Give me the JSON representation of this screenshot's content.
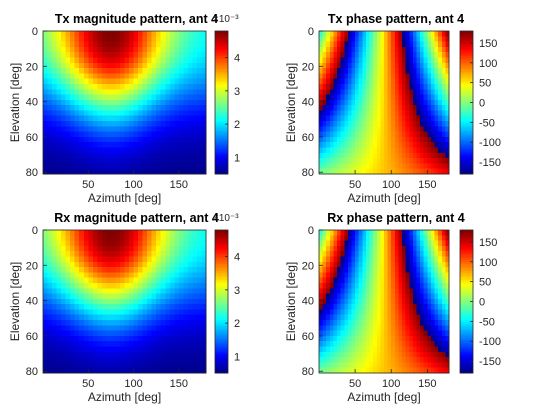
{
  "chart_data": [
    {
      "type": "heatmap",
      "kind": "magnitude",
      "title": "Tx magnitude pattern, ant 4",
      "xlabel": "Azimuth [deg]",
      "ylabel": "Elevation [deg]",
      "xlim": [
        0,
        180
      ],
      "ylim": [
        0,
        81
      ],
      "y_reversed": true,
      "x_ticks": [
        50,
        100,
        150
      ],
      "y_ticks": [
        0,
        20,
        40,
        60,
        80
      ],
      "grid": false,
      "colormap": "jet",
      "colorbar": {
        "ticks": [
          1,
          2,
          3,
          4
        ],
        "clim": [
          0.5,
          4.8
        ],
        "exponent_label": "×10⁻³"
      },
      "pattern_model": {
        "peak_azimuth": 75,
        "peak_value": 4.8,
        "floor_value": 0.5
      }
    },
    {
      "type": "heatmap",
      "kind": "phase",
      "title": "Tx phase pattern, ant 4",
      "xlabel": "Azimuth [deg]",
      "ylabel": "Elevation [deg]",
      "xlim": [
        0,
        180
      ],
      "ylim": [
        0,
        81
      ],
      "y_reversed": true,
      "x_ticks": [
        50,
        100,
        150
      ],
      "y_ticks": [
        0,
        20,
        40,
        60,
        80
      ],
      "grid": false,
      "colormap": "jet",
      "colorbar": {
        "ticks": [
          150,
          100,
          50,
          0,
          -50,
          -100,
          -150
        ],
        "clim": [
          -180,
          180
        ]
      },
      "pattern_model": {
        "center_azimuth": 80,
        "center_phase": 10,
        "phase_gradient_per_deg": 4.5
      }
    },
    {
      "type": "heatmap",
      "kind": "magnitude",
      "title": "Rx magnitude pattern, ant 4",
      "xlabel": "Azimuth [deg]",
      "ylabel": "Elevation [deg]",
      "xlim": [
        0,
        180
      ],
      "ylim": [
        0,
        81
      ],
      "y_reversed": true,
      "x_ticks": [
        50,
        100,
        150
      ],
      "y_ticks": [
        0,
        20,
        40,
        60,
        80
      ],
      "grid": false,
      "colormap": "jet",
      "colorbar": {
        "ticks": [
          1,
          2,
          3,
          4
        ],
        "clim": [
          0.5,
          4.8
        ],
        "exponent_label": "×10⁻³"
      },
      "pattern_model": {
        "peak_azimuth": 75,
        "peak_value": 4.8,
        "floor_value": 0.5
      }
    },
    {
      "type": "heatmap",
      "kind": "phase",
      "title": "Rx phase pattern, ant 4",
      "xlabel": "Azimuth [deg]",
      "ylabel": "Elevation [deg]",
      "xlim": [
        0,
        180
      ],
      "ylim": [
        0,
        81
      ],
      "y_reversed": true,
      "x_ticks": [
        50,
        100,
        150
      ],
      "y_ticks": [
        0,
        20,
        40,
        60,
        80
      ],
      "grid": false,
      "colormap": "jet",
      "colorbar": {
        "ticks": [
          150,
          100,
          50,
          0,
          -50,
          -100,
          -150
        ],
        "clim": [
          -180,
          180
        ]
      },
      "pattern_model": {
        "center_azimuth": 80,
        "center_phase": 10,
        "phase_gradient_per_deg": 4.5
      }
    }
  ]
}
